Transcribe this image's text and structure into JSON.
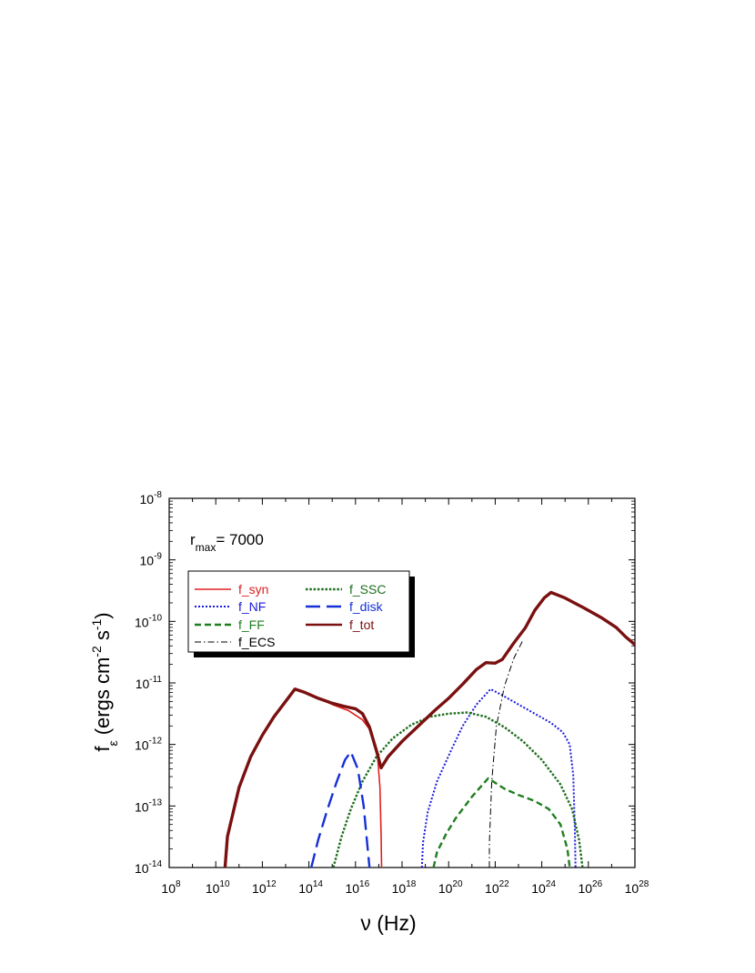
{
  "chart_data": {
    "type": "line",
    "xscale": "log",
    "yscale": "log",
    "xlim": [
      100000000.0,
      1e+28
    ],
    "ylim": [
      1e-14,
      1e-08
    ],
    "xlabel": {
      "main": "ν (Hz)"
    },
    "ylabel": {
      "base": "f",
      "sub": "ε",
      "units": "(ergs cm",
      "exp1": "-2",
      "mid": " s",
      "exp2": "-1",
      "close": ")"
    },
    "x_ticks": [
      {
        "exp": "8",
        "label_base": "10"
      },
      {
        "exp": "10",
        "label_base": "10"
      },
      {
        "exp": "12",
        "label_base": "10"
      },
      {
        "exp": "14",
        "label_base": "10"
      },
      {
        "exp": "16",
        "label_base": "10"
      },
      {
        "exp": "18",
        "label_base": "10"
      },
      {
        "exp": "20",
        "label_base": "10"
      },
      {
        "exp": "22",
        "label_base": "10"
      },
      {
        "exp": "24",
        "label_base": "10"
      },
      {
        "exp": "26",
        "label_base": "10"
      },
      {
        "exp": "28",
        "label_base": "10"
      }
    ],
    "y_ticks": [
      {
        "exp": "-14",
        "label_base": "10"
      },
      {
        "exp": "-13",
        "label_base": "10"
      },
      {
        "exp": "-12",
        "label_base": "10"
      },
      {
        "exp": "-11",
        "label_base": "10"
      },
      {
        "exp": "-10",
        "label_base": "10"
      },
      {
        "exp": "-9",
        "label_base": "10"
      },
      {
        "exp": "-8",
        "label_base": "10"
      }
    ],
    "annotation": {
      "base": "r",
      "sub": "max",
      "text": "= 7000"
    },
    "legend": {
      "position": "upper-left"
    },
    "series": [
      {
        "name": "f_syn",
        "color": "#e02020",
        "dash": "solid",
        "width": 1.6,
        "points": [
          [
            10.4,
            -14
          ],
          [
            10.5,
            -13.5
          ],
          [
            11,
            -12.7
          ],
          [
            11.5,
            -12.2
          ],
          [
            12,
            -11.85
          ],
          [
            12.5,
            -11.55
          ],
          [
            13,
            -11.3
          ],
          [
            13.4,
            -11.1
          ],
          [
            13.8,
            -11.15
          ],
          [
            14.4,
            -11.25
          ],
          [
            15,
            -11.35
          ],
          [
            15.7,
            -11.45
          ],
          [
            16.3,
            -11.6
          ],
          [
            16.7,
            -11.8
          ],
          [
            16.95,
            -12.2
          ],
          [
            17.05,
            -12.7
          ],
          [
            17.1,
            -13.5
          ],
          [
            17.12,
            -14
          ]
        ]
      },
      {
        "name": "f_NF",
        "color": "#1a1adc",
        "dash": "dot",
        "width": 2,
        "points": [
          [
            18.85,
            -14
          ],
          [
            18.9,
            -13.6
          ],
          [
            19.1,
            -13.1
          ],
          [
            19.5,
            -12.6
          ],
          [
            20.1,
            -12.1
          ],
          [
            20.6,
            -11.7
          ],
          [
            21.2,
            -11.35
          ],
          [
            21.8,
            -11.1
          ],
          [
            22.3,
            -11.2
          ],
          [
            23,
            -11.35
          ],
          [
            23.7,
            -11.5
          ],
          [
            24.4,
            -11.65
          ],
          [
            24.9,
            -11.8
          ],
          [
            25.2,
            -12
          ],
          [
            25.35,
            -12.5
          ],
          [
            25.42,
            -13.4
          ],
          [
            25.45,
            -14
          ]
        ]
      },
      {
        "name": "f_FF",
        "color": "#1e7e1e",
        "dash": "dash",
        "width": 2.4,
        "points": [
          [
            19.35,
            -14
          ],
          [
            19.5,
            -13.75
          ],
          [
            19.9,
            -13.45
          ],
          [
            20.3,
            -13.2
          ],
          [
            21,
            -12.85
          ],
          [
            21.7,
            -12.55
          ],
          [
            22.4,
            -12.72
          ],
          [
            23,
            -12.82
          ],
          [
            23.7,
            -12.92
          ],
          [
            24.3,
            -13.05
          ],
          [
            24.8,
            -13.3
          ],
          [
            25.1,
            -13.7
          ],
          [
            25.2,
            -14
          ]
        ]
      },
      {
        "name": "f_ECS",
        "color": "#000000",
        "dash": "dashdot",
        "width": 1,
        "points": [
          [
            21.75,
            -14
          ],
          [
            21.75,
            -13.6
          ],
          [
            21.85,
            -12.6
          ],
          [
            22.05,
            -11.7
          ],
          [
            22.4,
            -11.05
          ],
          [
            22.8,
            -10.6
          ],
          [
            23.2,
            -10.3
          ]
        ]
      },
      {
        "name": "f_SSC",
        "color": "#1e6e1e",
        "dash": "dotdense",
        "width": 2.4,
        "points": [
          [
            15.05,
            -14
          ],
          [
            15.4,
            -13.5
          ],
          [
            15.8,
            -13.05
          ],
          [
            16.3,
            -12.6
          ],
          [
            16.9,
            -12.2
          ],
          [
            17.6,
            -11.9
          ],
          [
            18.4,
            -11.68
          ],
          [
            19.2,
            -11.55
          ],
          [
            20,
            -11.5
          ],
          [
            20.8,
            -11.48
          ],
          [
            21.6,
            -11.55
          ],
          [
            22.4,
            -11.72
          ],
          [
            23.2,
            -11.95
          ],
          [
            24,
            -12.25
          ],
          [
            24.8,
            -12.65
          ],
          [
            25.3,
            -13.05
          ],
          [
            25.6,
            -13.55
          ],
          [
            25.75,
            -14
          ]
        ]
      },
      {
        "name": "f_disk",
        "color": "#1530d6",
        "dash": "longdash",
        "width": 2.4,
        "points": [
          [
            14.1,
            -14
          ],
          [
            14.4,
            -13.55
          ],
          [
            14.8,
            -13.05
          ],
          [
            15.2,
            -12.6
          ],
          [
            15.55,
            -12.25
          ],
          [
            15.8,
            -12.12
          ],
          [
            16.1,
            -12.4
          ],
          [
            16.35,
            -13.0
          ],
          [
            16.5,
            -13.6
          ],
          [
            16.6,
            -14
          ]
        ]
      },
      {
        "name": "f_tot",
        "color": "#7a1010",
        "dash": "solid",
        "width": 3.4,
        "points": [
          [
            10.4,
            -14
          ],
          [
            10.5,
            -13.5
          ],
          [
            11,
            -12.7
          ],
          [
            11.5,
            -12.2
          ],
          [
            12,
            -11.85
          ],
          [
            12.5,
            -11.55
          ],
          [
            13,
            -11.3
          ],
          [
            13.4,
            -11.1
          ],
          [
            13.8,
            -11.15
          ],
          [
            14.4,
            -11.25
          ],
          [
            15,
            -11.33
          ],
          [
            15.5,
            -11.38
          ],
          [
            16,
            -11.42
          ],
          [
            16.3,
            -11.5
          ],
          [
            16.6,
            -11.72
          ],
          [
            16.9,
            -12.1
          ],
          [
            17.1,
            -12.38
          ],
          [
            17.4,
            -12.2
          ],
          [
            18,
            -11.95
          ],
          [
            18.7,
            -11.7
          ],
          [
            19.4,
            -11.45
          ],
          [
            20,
            -11.25
          ],
          [
            20.6,
            -11.02
          ],
          [
            21.2,
            -10.78
          ],
          [
            21.6,
            -10.67
          ],
          [
            22,
            -10.68
          ],
          [
            22.3,
            -10.62
          ],
          [
            22.8,
            -10.35
          ],
          [
            23.3,
            -10.1
          ],
          [
            23.7,
            -9.82
          ],
          [
            24.1,
            -9.62
          ],
          [
            24.4,
            -9.53
          ],
          [
            25,
            -9.62
          ],
          [
            25.8,
            -9.78
          ],
          [
            26.6,
            -9.95
          ],
          [
            27.2,
            -10.1
          ],
          [
            27.6,
            -10.25
          ],
          [
            28,
            -10.38
          ]
        ]
      }
    ]
  }
}
